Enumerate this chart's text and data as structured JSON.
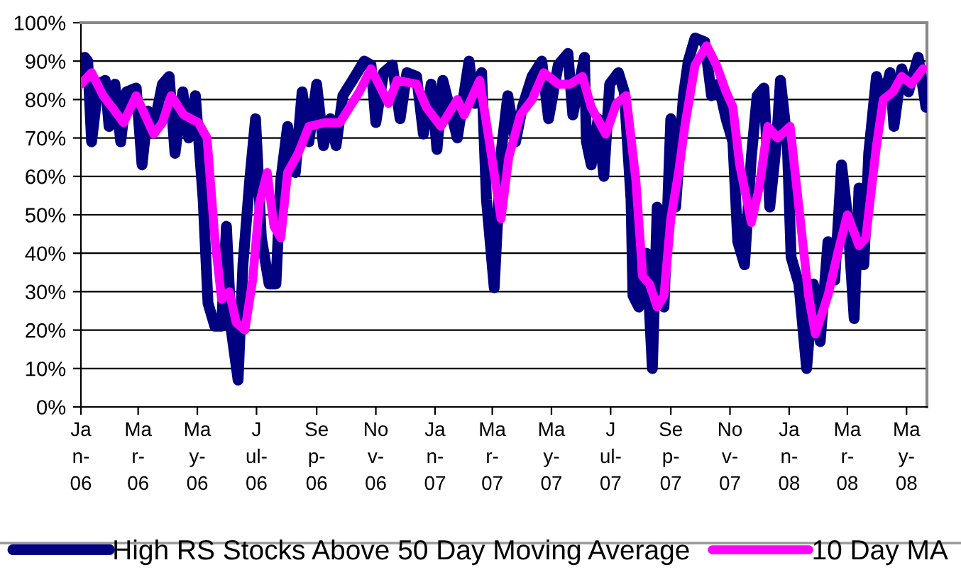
{
  "chart_data": {
    "type": "line",
    "xlim": [
      "2006-01-01",
      "2008-05-22"
    ],
    "xticks": [
      {
        "value": "2006-01-01",
        "label": "Ja\nn-\n06"
      },
      {
        "value": "2006-03-01",
        "label": "Ma\nr-\n06"
      },
      {
        "value": "2006-05-01",
        "label": "Ma\ny-\n06"
      },
      {
        "value": "2006-07-01",
        "label": "J\nul-\n06"
      },
      {
        "value": "2006-09-01",
        "label": "Se\np-\n06"
      },
      {
        "value": "2006-11-01",
        "label": "No\nv-\n06"
      },
      {
        "value": "2007-01-01",
        "label": "Ja\nn-\n07"
      },
      {
        "value": "2007-03-01",
        "label": "Ma\nr-\n07"
      },
      {
        "value": "2007-05-01",
        "label": "Ma\ny-\n07"
      },
      {
        "value": "2007-07-01",
        "label": "J\nul-\n07"
      },
      {
        "value": "2007-09-01",
        "label": "Se\np-\n07"
      },
      {
        "value": "2007-11-01",
        "label": "No\nv-\n07"
      },
      {
        "value": "2008-01-01",
        "label": "Ja\nn-\n08"
      },
      {
        "value": "2008-03-01",
        "label": "Ma\nr-\n08"
      },
      {
        "value": "2008-05-01",
        "label": "Ma\ny-\n08"
      }
    ],
    "ylim": [
      0,
      100
    ],
    "yticks": [
      {
        "value": 0,
        "label": "0%"
      },
      {
        "value": 10,
        "label": "10%"
      },
      {
        "value": 20,
        "label": "20%"
      },
      {
        "value": 30,
        "label": "30%"
      },
      {
        "value": 40,
        "label": "40%"
      },
      {
        "value": 50,
        "label": "50%"
      },
      {
        "value": 60,
        "label": "60%"
      },
      {
        "value": 70,
        "label": "70%"
      },
      {
        "value": 80,
        "label": "80%"
      },
      {
        "value": 90,
        "label": "90%"
      },
      {
        "value": 100,
        "label": "100%"
      }
    ],
    "grid": "y",
    "legend": "bottom",
    "marker": "none",
    "line_style": "solid",
    "series": [
      {
        "name": "High RS Stocks Above 50 Day Moving Average",
        "color": "#000080",
        "x": [
          "2006-01-01",
          "2006-01-05",
          "2006-01-08",
          "2006-01-12",
          "2006-01-19",
          "2006-01-26",
          "2006-01-30",
          "2006-02-05",
          "2006-02-11",
          "2006-02-17",
          "2006-02-27",
          "2006-03-05",
          "2006-03-11",
          "2006-03-18",
          "2006-03-26",
          "2006-04-02",
          "2006-04-08",
          "2006-04-16",
          "2006-04-22",
          "2006-04-29",
          "2006-05-07",
          "2006-05-12",
          "2006-05-19",
          "2006-05-26",
          "2006-05-31",
          "2006-06-05",
          "2006-06-12",
          "2006-06-17",
          "2006-06-24",
          "2006-06-30",
          "2006-07-06",
          "2006-07-14",
          "2006-07-21",
          "2006-07-26",
          "2006-08-02",
          "2006-08-10",
          "2006-08-17",
          "2006-08-24",
          "2006-09-01",
          "2006-09-08",
          "2006-09-15",
          "2006-09-21",
          "2006-09-28",
          "2006-10-08",
          "2006-10-20",
          "2006-10-27",
          "2006-11-01",
          "2006-11-09",
          "2006-11-18",
          "2006-11-26",
          "2006-12-03",
          "2006-12-13",
          "2006-12-20",
          "2006-12-28",
          "2007-01-03",
          "2007-01-09",
          "2007-01-24",
          "2007-02-05",
          "2007-02-11",
          "2007-02-18",
          "2007-02-23",
          "2007-03-03",
          "2007-03-10",
          "2007-03-17",
          "2007-03-25",
          "2007-04-01",
          "2007-04-11",
          "2007-04-21",
          "2007-04-28",
          "2007-05-08",
          "2007-05-18",
          "2007-05-23",
          "2007-06-04",
          "2007-06-06",
          "2007-06-11",
          "2007-06-18",
          "2007-06-24",
          "2007-06-30",
          "2007-07-09",
          "2007-07-15",
          "2007-07-22",
          "2007-07-24",
          "2007-07-30",
          "2007-08-07",
          "2007-08-13",
          "2007-08-18",
          "2007-08-25",
          "2007-09-01",
          "2007-09-06",
          "2007-09-14",
          "2007-09-19",
          "2007-09-26",
          "2007-10-06",
          "2007-10-13",
          "2007-10-20",
          "2007-10-28",
          "2007-11-04",
          "2007-11-09",
          "2007-11-16",
          "2007-11-23",
          "2007-11-29",
          "2007-12-06",
          "2007-12-12",
          "2007-12-19",
          "2007-12-23",
          "2007-12-30",
          "2008-01-03",
          "2008-01-11",
          "2008-01-19",
          "2008-01-26",
          "2008-02-02",
          "2008-02-10",
          "2008-02-17",
          "2008-02-24",
          "2008-03-01",
          "2008-03-08",
          "2008-03-13",
          "2008-03-18",
          "2008-03-23",
          "2008-03-31",
          "2008-04-07",
          "2008-04-14",
          "2008-04-18",
          "2008-04-26",
          "2008-05-03",
          "2008-05-13",
          "2008-05-21"
        ],
        "values": [
          85,
          91,
          90,
          69,
          84,
          85,
          73,
          84,
          69,
          82,
          83,
          63,
          77,
          74,
          84,
          86,
          66,
          82,
          70,
          81,
          54,
          27,
          21,
          21,
          47,
          20,
          7,
          37,
          59,
          75,
          44,
          32,
          32,
          59,
          73,
          61,
          82,
          69,
          84,
          68,
          75,
          68,
          81,
          85,
          90,
          89,
          74,
          87,
          89,
          75,
          87,
          86,
          71,
          84,
          67,
          85,
          70,
          90,
          79,
          87,
          54,
          31,
          66,
          81,
          69,
          78,
          86,
          90,
          75,
          89,
          92,
          76,
          91,
          69,
          63,
          75,
          60,
          84,
          87,
          82,
          54,
          29,
          26,
          40,
          10,
          52,
          26,
          75,
          52,
          81,
          90,
          96,
          95,
          81,
          84,
          75,
          69,
          43,
          37,
          65,
          81,
          83,
          52,
          69,
          85,
          69,
          39,
          32,
          10,
          32,
          17,
          43,
          33,
          63,
          50,
          23,
          57,
          37,
          66,
          86,
          80,
          87,
          73,
          88,
          82,
          91,
          78
        ]
      },
      {
        "name": "10 Day MA",
        "color": "#ff00ff",
        "x": [
          "2006-01-01",
          "2006-01-12",
          "2006-01-24",
          "2006-02-02",
          "2006-02-14",
          "2006-02-27",
          "2006-03-17",
          "2006-03-26",
          "2006-04-04",
          "2006-04-17",
          "2006-05-02",
          "2006-05-11",
          "2006-05-19",
          "2006-05-26",
          "2006-06-03",
          "2006-06-10",
          "2006-06-19",
          "2006-06-27",
          "2006-07-04",
          "2006-07-12",
          "2006-07-19",
          "2006-07-26",
          "2006-08-02",
          "2006-08-13",
          "2006-08-24",
          "2006-09-10",
          "2006-09-25",
          "2006-10-15",
          "2006-10-27",
          "2006-11-14",
          "2006-11-23",
          "2006-12-13",
          "2006-12-23",
          "2007-01-07",
          "2007-01-24",
          "2007-01-31",
          "2007-02-16",
          "2007-02-26",
          "2007-03-10",
          "2007-03-18",
          "2007-03-30",
          "2007-04-11",
          "2007-04-23",
          "2007-05-08",
          "2007-05-20",
          "2007-06-02",
          "2007-06-11",
          "2007-06-26",
          "2007-07-07",
          "2007-07-17",
          "2007-07-27",
          "2007-08-03",
          "2007-08-10",
          "2007-08-18",
          "2007-08-25",
          "2007-09-01",
          "2007-09-09",
          "2007-09-16",
          "2007-09-26",
          "2007-10-08",
          "2007-10-18",
          "2007-10-28",
          "2007-11-04",
          "2007-11-11",
          "2007-11-23",
          "2007-12-01",
          "2007-12-10",
          "2007-12-20",
          "2008-01-02",
          "2008-01-11",
          "2008-01-21",
          "2008-01-28",
          "2008-02-10",
          "2008-02-20",
          "2008-03-01",
          "2008-03-13",
          "2008-03-20",
          "2008-03-31",
          "2008-04-07",
          "2008-04-17",
          "2008-04-26",
          "2008-05-06",
          "2008-05-18"
        ],
        "values": [
          84,
          87,
          81,
          78,
          74,
          81,
          71,
          74,
          81,
          76,
          74,
          70,
          44,
          28,
          30,
          22,
          20,
          33,
          53,
          61,
          47,
          44,
          61,
          66,
          73,
          74,
          74,
          82,
          88,
          79,
          85,
          84,
          78,
          73,
          80,
          76,
          85,
          69,
          49,
          65,
          76,
          80,
          87,
          84,
          84,
          86,
          78,
          71,
          79,
          81,
          59,
          34,
          32,
          26,
          29,
          49,
          61,
          74,
          89,
          94,
          89,
          82,
          78,
          63,
          48,
          57,
          73,
          70,
          73,
          52,
          29,
          19,
          29,
          40,
          50,
          42,
          44,
          68,
          80,
          82,
          86,
          84,
          88
        ]
      }
    ]
  }
}
